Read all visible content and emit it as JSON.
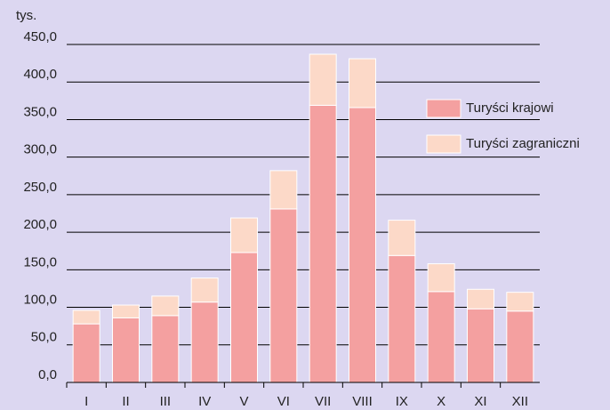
{
  "chart_data": {
    "type": "stacked_bar",
    "y_unit": "tys.",
    "categories": [
      "I",
      "II",
      "III",
      "IV",
      "V",
      "VI",
      "VII",
      "VIII",
      "IX",
      "X",
      "XI",
      "XII"
    ],
    "series": [
      {
        "name": "Turyści krajowi",
        "color": "#f4a0a0",
        "values": [
          78,
          86,
          89,
          107,
          173,
          231,
          369,
          366,
          169,
          121,
          98,
          95
        ]
      },
      {
        "name": "Turyści zagraniczni",
        "color": "#fcd9c8",
        "values": [
          18,
          17,
          26,
          32,
          46,
          51,
          68,
          65,
          47,
          37,
          26,
          25
        ]
      }
    ],
    "ylim": [
      0,
      450
    ],
    "yticks": [
      {
        "value": 0,
        "label": "0,0"
      },
      {
        "value": 50,
        "label": "50,0"
      },
      {
        "value": 100,
        "label": "100,0"
      },
      {
        "value": 150,
        "label": "150,0"
      },
      {
        "value": 200,
        "label": "200,0"
      },
      {
        "value": 250,
        "label": "250,0"
      },
      {
        "value": 300,
        "label": "300,0"
      },
      {
        "value": 350,
        "label": "350,0"
      },
      {
        "value": 400,
        "label": "400,0"
      },
      {
        "value": 450,
        "label": "450,0"
      }
    ],
    "grid": true,
    "legend": "right"
  }
}
